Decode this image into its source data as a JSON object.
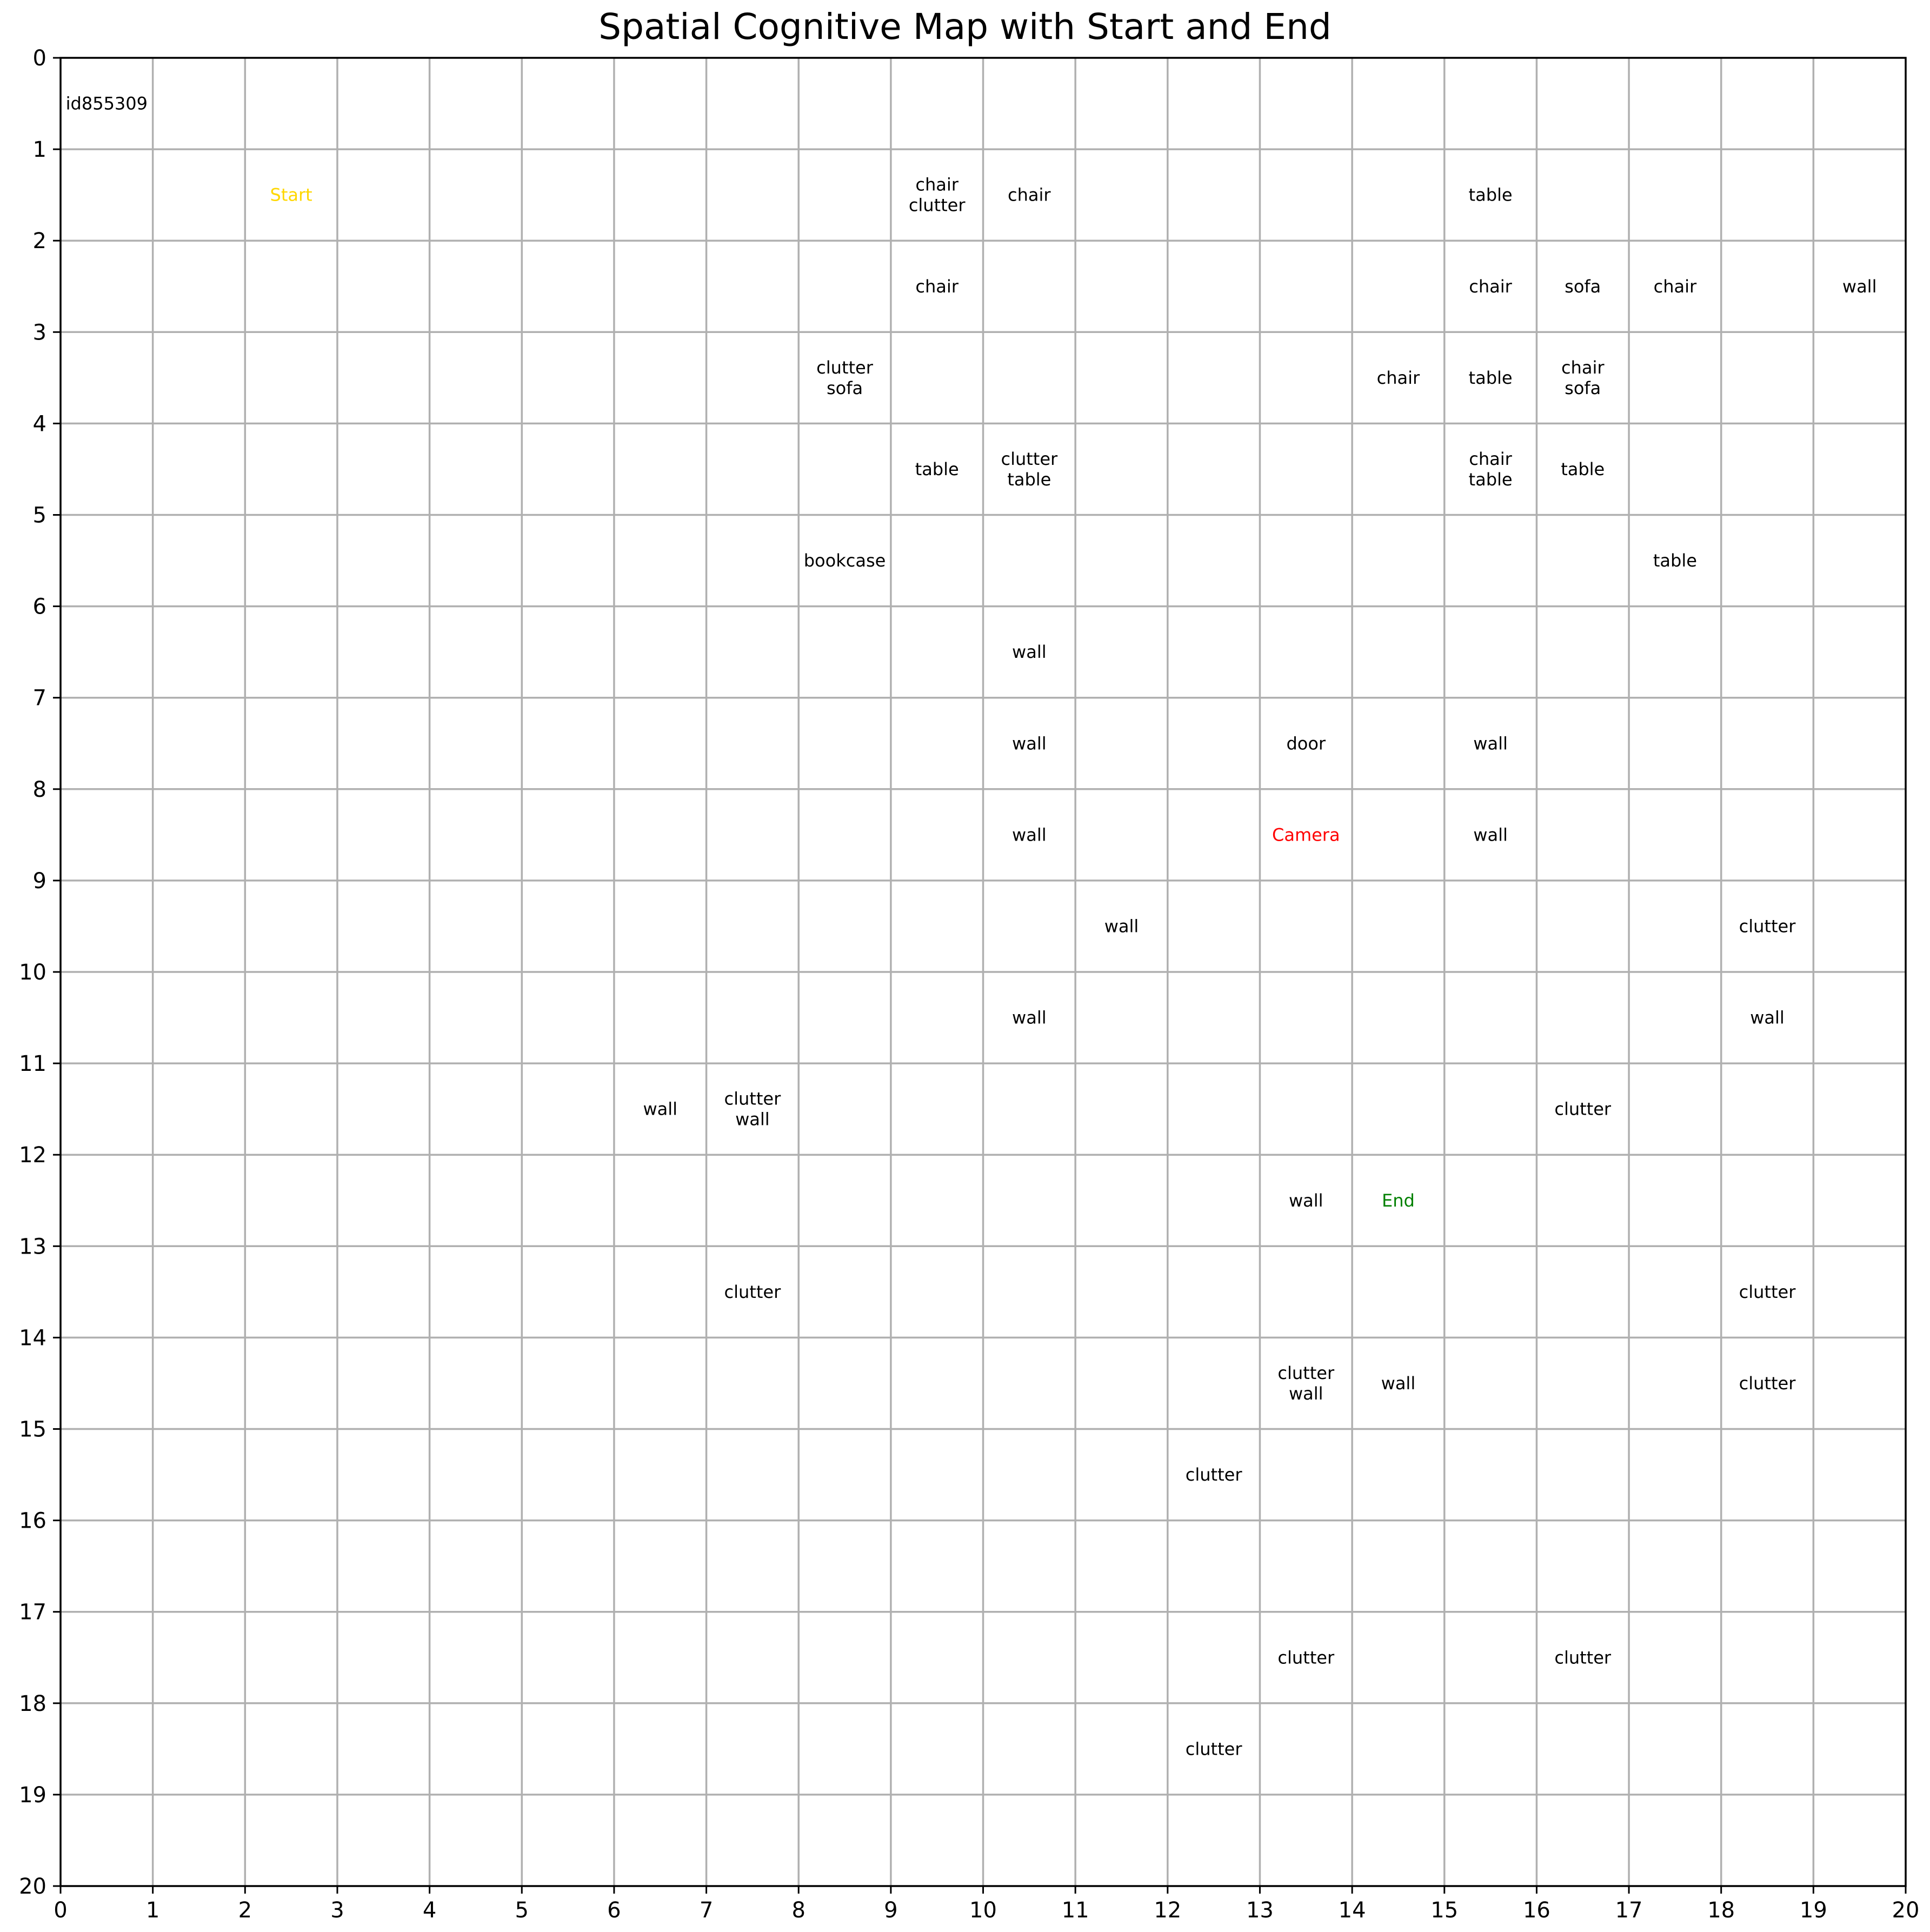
{
  "title": "Spatial Cognitive Map with Start and End",
  "grid": {
    "cols": 20,
    "rows": 20,
    "x_ticks": [
      "0",
      "1",
      "2",
      "3",
      "4",
      "5",
      "6",
      "7",
      "8",
      "9",
      "10",
      "11",
      "12",
      "13",
      "14",
      "15",
      "16",
      "17",
      "18",
      "19",
      "20"
    ],
    "y_ticks": [
      "0",
      "1",
      "2",
      "3",
      "4",
      "5",
      "6",
      "7",
      "8",
      "9",
      "10",
      "11",
      "12",
      "13",
      "14",
      "15",
      "16",
      "17",
      "18",
      "19",
      "20"
    ]
  },
  "colors": {
    "object": "#000000",
    "start": "#ffd700",
    "end": "#008000",
    "camera": "#ff0000",
    "grid": "#b0b0b0"
  },
  "cells": [
    {
      "col": 0,
      "row": 0,
      "labels": [
        "id855309"
      ],
      "kind": "object"
    },
    {
      "col": 2,
      "row": 1,
      "labels": [
        "Start"
      ],
      "kind": "start"
    },
    {
      "col": 9,
      "row": 1,
      "labels": [
        "chair",
        "clutter"
      ],
      "kind": "object"
    },
    {
      "col": 10,
      "row": 1,
      "labels": [
        "chair"
      ],
      "kind": "object"
    },
    {
      "col": 15,
      "row": 1,
      "labels": [
        "table"
      ],
      "kind": "object"
    },
    {
      "col": 9,
      "row": 2,
      "labels": [
        "chair"
      ],
      "kind": "object"
    },
    {
      "col": 15,
      "row": 2,
      "labels": [
        "chair"
      ],
      "kind": "object"
    },
    {
      "col": 16,
      "row": 2,
      "labels": [
        "sofa"
      ],
      "kind": "object"
    },
    {
      "col": 17,
      "row": 2,
      "labels": [
        "chair"
      ],
      "kind": "object"
    },
    {
      "col": 19,
      "row": 2,
      "labels": [
        "wall"
      ],
      "kind": "object"
    },
    {
      "col": 8,
      "row": 3,
      "labels": [
        "clutter",
        "sofa"
      ],
      "kind": "object"
    },
    {
      "col": 14,
      "row": 3,
      "labels": [
        "chair"
      ],
      "kind": "object"
    },
    {
      "col": 15,
      "row": 3,
      "labels": [
        "table"
      ],
      "kind": "object"
    },
    {
      "col": 16,
      "row": 3,
      "labels": [
        "chair",
        "sofa"
      ],
      "kind": "object"
    },
    {
      "col": 9,
      "row": 4,
      "labels": [
        "table"
      ],
      "kind": "object"
    },
    {
      "col": 10,
      "row": 4,
      "labels": [
        "clutter",
        "table"
      ],
      "kind": "object"
    },
    {
      "col": 15,
      "row": 4,
      "labels": [
        "chair",
        "table"
      ],
      "kind": "object"
    },
    {
      "col": 16,
      "row": 4,
      "labels": [
        "table"
      ],
      "kind": "object"
    },
    {
      "col": 8,
      "row": 5,
      "labels": [
        "bookcase"
      ],
      "kind": "object"
    },
    {
      "col": 17,
      "row": 5,
      "labels": [
        "table"
      ],
      "kind": "object"
    },
    {
      "col": 10,
      "row": 6,
      "labels": [
        "wall"
      ],
      "kind": "object"
    },
    {
      "col": 10,
      "row": 7,
      "labels": [
        "wall"
      ],
      "kind": "object"
    },
    {
      "col": 13,
      "row": 7,
      "labels": [
        "door"
      ],
      "kind": "object"
    },
    {
      "col": 15,
      "row": 7,
      "labels": [
        "wall"
      ],
      "kind": "object"
    },
    {
      "col": 10,
      "row": 8,
      "labels": [
        "wall"
      ],
      "kind": "object"
    },
    {
      "col": 13,
      "row": 8,
      "labels": [
        "Camera"
      ],
      "kind": "camera"
    },
    {
      "col": 15,
      "row": 8,
      "labels": [
        "wall"
      ],
      "kind": "object"
    },
    {
      "col": 11,
      "row": 9,
      "labels": [
        "wall"
      ],
      "kind": "object"
    },
    {
      "col": 18,
      "row": 9,
      "labels": [
        "clutter"
      ],
      "kind": "object"
    },
    {
      "col": 10,
      "row": 10,
      "labels": [
        "wall"
      ],
      "kind": "object"
    },
    {
      "col": 18,
      "row": 10,
      "labels": [
        "wall"
      ],
      "kind": "object"
    },
    {
      "col": 6,
      "row": 11,
      "labels": [
        "wall"
      ],
      "kind": "object"
    },
    {
      "col": 7,
      "row": 11,
      "labels": [
        "clutter",
        "wall"
      ],
      "kind": "object"
    },
    {
      "col": 16,
      "row": 11,
      "labels": [
        "clutter"
      ],
      "kind": "object"
    },
    {
      "col": 13,
      "row": 12,
      "labels": [
        "wall"
      ],
      "kind": "object"
    },
    {
      "col": 14,
      "row": 12,
      "labels": [
        "End"
      ],
      "kind": "end"
    },
    {
      "col": 7,
      "row": 13,
      "labels": [
        "clutter"
      ],
      "kind": "object"
    },
    {
      "col": 18,
      "row": 13,
      "labels": [
        "clutter"
      ],
      "kind": "object"
    },
    {
      "col": 13,
      "row": 14,
      "labels": [
        "clutter",
        "wall"
      ],
      "kind": "object"
    },
    {
      "col": 14,
      "row": 14,
      "labels": [
        "wall"
      ],
      "kind": "object"
    },
    {
      "col": 18,
      "row": 14,
      "labels": [
        "clutter"
      ],
      "kind": "object"
    },
    {
      "col": 12,
      "row": 15,
      "labels": [
        "clutter"
      ],
      "kind": "object"
    },
    {
      "col": 13,
      "row": 17,
      "labels": [
        "clutter"
      ],
      "kind": "object"
    },
    {
      "col": 16,
      "row": 17,
      "labels": [
        "clutter"
      ],
      "kind": "object"
    },
    {
      "col": 12,
      "row": 18,
      "labels": [
        "clutter"
      ],
      "kind": "object"
    }
  ]
}
